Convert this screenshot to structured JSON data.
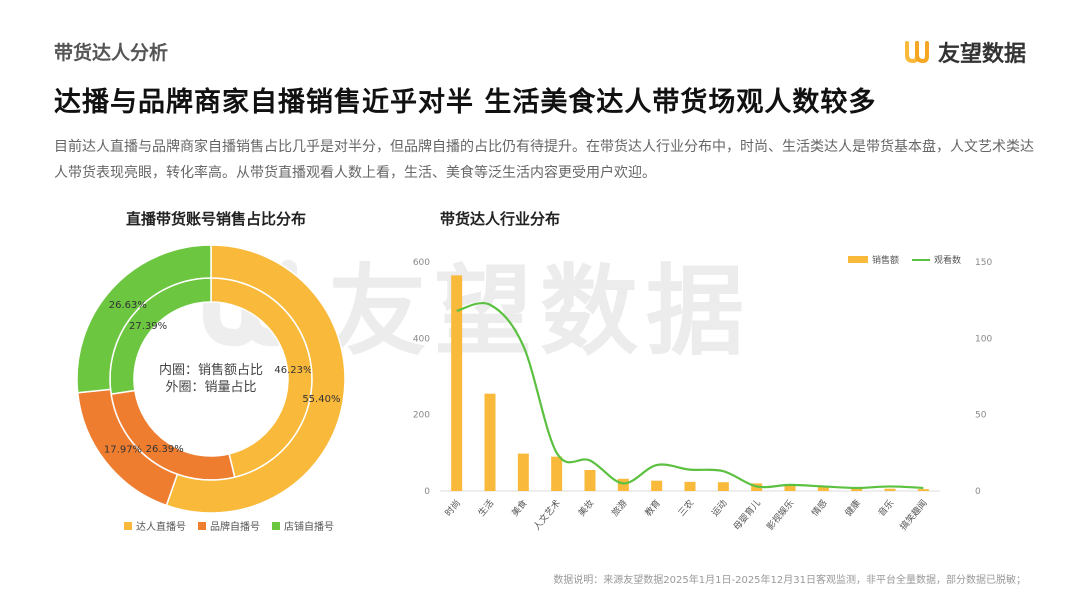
{
  "header": {
    "section_tag": "带货达人分析",
    "brand_name": "友望数据",
    "headline": "达播与品牌商家自播销售近乎对半 生活美食达人带货场观人数较多",
    "summary": "目前达人直播与品牌商家自播销售占比几乎是对半分，但品牌自播的占比仍有待提升。在带货达人行业分布中，时尚、生活类达人是带货基本盘，人文艺术类达人带货表现亮眼，转化率高。从带货直播观看人数上看，生活、美食等泛生活内容更受用户欢迎。"
  },
  "watermark": "友望数据",
  "footnote": "数据说明：来源友望数据2025年1月1日-2025年12月31日客观监测，非平台全量数据，部分数据已脱敏；",
  "colors": {
    "yellow": "#F9B93B",
    "orange": "#EE7D30",
    "green": "#6CC640",
    "line_green": "#5CC041"
  },
  "chart_data": [
    {
      "type": "pie",
      "title": "直播带货账号销售占比分布",
      "center_label_inner": "内圈：销售额占比",
      "center_label_outer": "外圈：销量占比",
      "categories": [
        "达人直播号",
        "品牌自播号",
        "店铺自播号"
      ],
      "series": [
        {
          "name": "销售额占比",
          "ring": "inner",
          "values": [
            46.23,
            26.39,
            27.39
          ],
          "labels": [
            "46.23%",
            "26.39%",
            "27.39%"
          ]
        },
        {
          "name": "销量占比",
          "ring": "outer",
          "values": [
            55.4,
            17.97,
            26.63
          ],
          "labels": [
            "55.40%",
            "17.97%",
            "26.63%"
          ]
        }
      ],
      "legend": [
        {
          "label": "达人直播号",
          "color": "#F9B93B"
        },
        {
          "label": "品牌自播号",
          "color": "#EE7D30"
        },
        {
          "label": "店铺自播号",
          "color": "#6CC640"
        }
      ],
      "legend_position": "bottom"
    },
    {
      "type": "bar",
      "title": "带货达人行业分布",
      "categories": [
        "时尚",
        "生活",
        "美食",
        "人文艺术",
        "美妆",
        "旅游",
        "教育",
        "三农",
        "运动",
        "母婴育儿",
        "影视娱乐",
        "情感",
        "健康",
        "音乐",
        "搞笑趣闻"
      ],
      "series": [
        {
          "name": "销售额",
          "type": "bar",
          "axis": "left",
          "color": "#F9B93B",
          "values": [
            565,
            255,
            98,
            90,
            55,
            32,
            27,
            24,
            23,
            20,
            18,
            12,
            10,
            6,
            5
          ]
        },
        {
          "name": "观看数",
          "type": "line",
          "axis": "right",
          "color": "#5CC041",
          "values": [
            118,
            122,
            95,
            25,
            20,
            5,
            17,
            14,
            13,
            3,
            4,
            3,
            2,
            3,
            2
          ]
        }
      ],
      "y_left": {
        "ylim": [
          0,
          600
        ],
        "ticks": [
          0,
          200,
          400,
          600
        ]
      },
      "y_right": {
        "ylim": [
          0,
          150
        ],
        "ticks": [
          0,
          50,
          100,
          150
        ]
      },
      "legend": [
        {
          "label": "销售额",
          "color": "#F9B93B"
        },
        {
          "label": "观看数",
          "color": "#5CC041"
        }
      ],
      "legend_position": "top-right",
      "grid": false
    }
  ]
}
